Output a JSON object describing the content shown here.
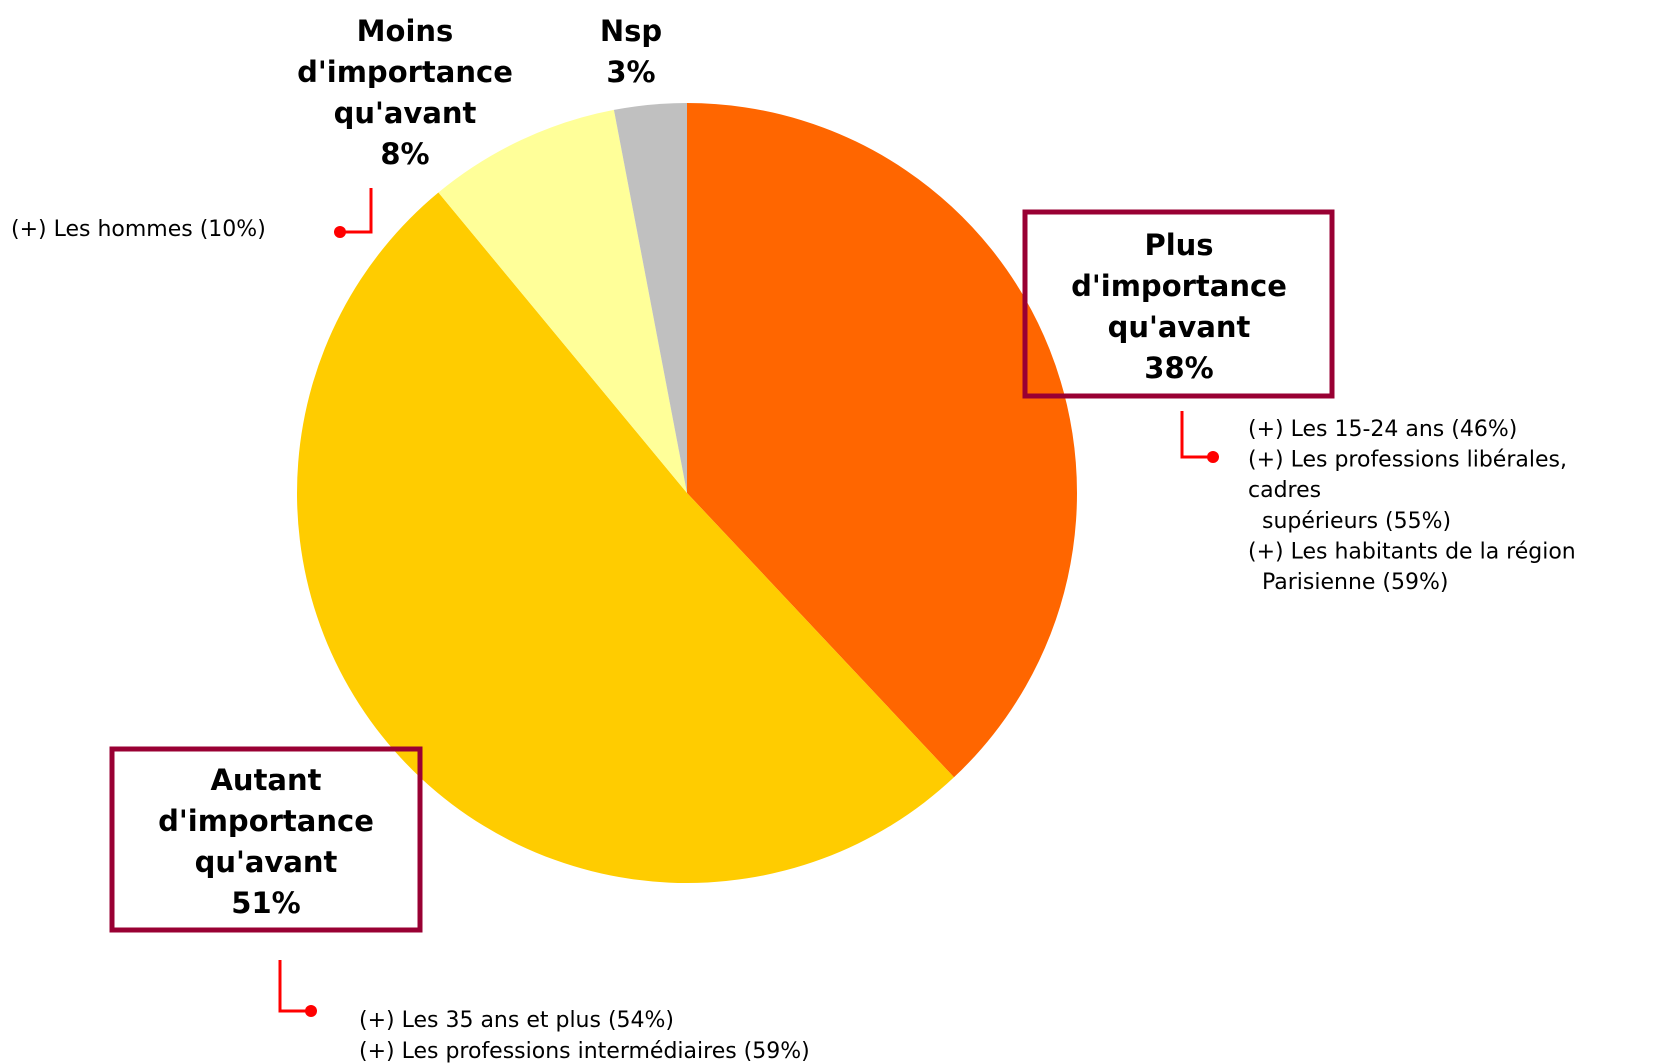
{
  "chart_data": {
    "type": "pie",
    "categories": [
      "Plus d'importance qu'avant",
      "Autant d'importance qu'avant",
      "Moins d'importance qu'avant",
      "Nsp"
    ],
    "values": [
      38,
      51,
      8,
      3
    ],
    "value_labels": [
      "38%",
      "51%",
      "8%",
      "3%"
    ],
    "colors": [
      "#ff6600",
      "#ffcc00",
      "#ffff99",
      "#c0c0c0"
    ],
    "annotations": [
      {
        "lines": [
          "(+) Les 15-24 ans (46%)",
          "(+) Les professions libérales,",
          "cadres",
          "  supérieurs (55%)",
          "(+) Les habitants de la région",
          "  Parisienne (59%)"
        ]
      },
      {
        "lines": [
          "(+) Les 35 ans et plus (54%)",
          "(+) Les professions intermédiaires (59%)"
        ]
      },
      {
        "lines": [
          "(+) Les hommes (10%)"
        ]
      }
    ]
  }
}
